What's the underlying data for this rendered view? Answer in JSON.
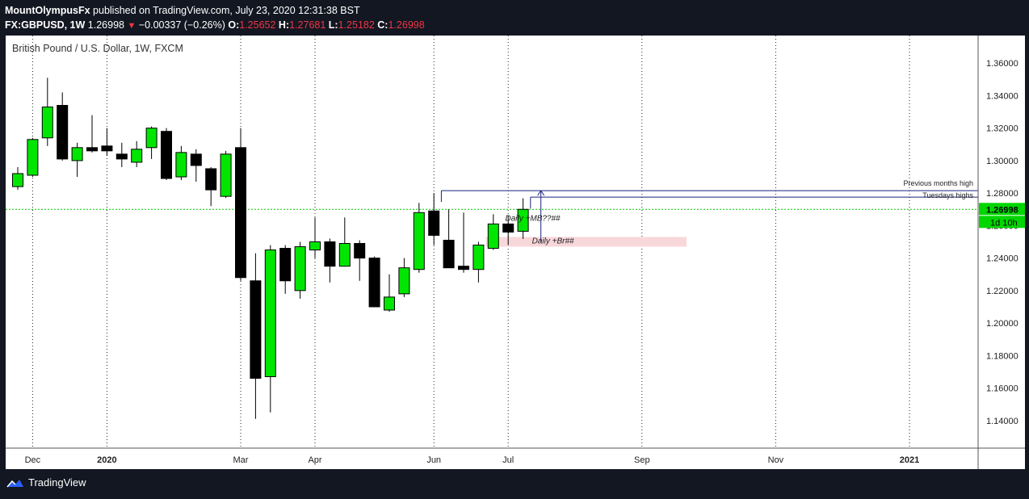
{
  "header": {
    "publisher": "MountOlympusFx",
    "published_text": "published on TradingView.com, July 23, 2020 12:31:38 BST",
    "symbol": "FX:GBPUSD, 1W",
    "last": "1.26998",
    "change": "−0.00337 (−0.26%)",
    "open_label": "O:",
    "open": "1.25652",
    "high_label": "H:",
    "high": "1.27681",
    "low_label": "L:",
    "low": "1.25182",
    "close_label": "C:",
    "close": "1.26998"
  },
  "footer": {
    "brand": "TradingView"
  },
  "colors": {
    "bull": "#00e600",
    "bear": "#000000",
    "price_line": "#00cc00",
    "level": "#1a237e",
    "zone": "#f8d7da"
  },
  "chart_data": {
    "type": "candlestick",
    "title": "British Pound / U.S. Dollar, 1W, FXCM",
    "ylim": [
      1.123,
      1.377
    ],
    "yticks": [
      "1.36000",
      "1.34000",
      "1.32000",
      "1.30000",
      "1.28000",
      "1.26000",
      "1.24000",
      "1.22000",
      "1.20000",
      "1.18000",
      "1.16000",
      "1.14000"
    ],
    "yticks_values": [
      1.36,
      1.34,
      1.32,
      1.3,
      1.28,
      1.26,
      1.24,
      1.22,
      1.2,
      1.18,
      1.16,
      1.14
    ],
    "xlabels": [
      "Dec",
      "2020",
      "Mar",
      "Apr",
      "Jun",
      "Jul",
      "Sep",
      "Nov",
      "2021"
    ],
    "xlabel_weeks": [
      1,
      6,
      15,
      20,
      28,
      33,
      42,
      51,
      60
    ],
    "grid": true,
    "candles": [
      {
        "o": 1.284,
        "h": 1.296,
        "l": 1.282,
        "c": 1.292
      },
      {
        "o": 1.291,
        "h": 1.314,
        "l": 1.29,
        "c": 1.313
      },
      {
        "o": 1.314,
        "h": 1.351,
        "l": 1.309,
        "c": 1.333
      },
      {
        "o": 1.334,
        "h": 1.342,
        "l": 1.3,
        "c": 1.301
      },
      {
        "o": 1.3,
        "h": 1.311,
        "l": 1.29,
        "c": 1.308
      },
      {
        "o": 1.308,
        "h": 1.328,
        "l": 1.305,
        "c": 1.306
      },
      {
        "o": 1.309,
        "h": 1.32,
        "l": 1.303,
        "c": 1.306
      },
      {
        "o": 1.304,
        "h": 1.311,
        "l": 1.296,
        "c": 1.301
      },
      {
        "o": 1.299,
        "h": 1.312,
        "l": 1.296,
        "c": 1.307
      },
      {
        "o": 1.308,
        "h": 1.321,
        "l": 1.301,
        "c": 1.32
      },
      {
        "o": 1.318,
        "h": 1.32,
        "l": 1.288,
        "c": 1.289
      },
      {
        "o": 1.29,
        "h": 1.309,
        "l": 1.288,
        "c": 1.305
      },
      {
        "o": 1.304,
        "h": 1.307,
        "l": 1.287,
        "c": 1.297
      },
      {
        "o": 1.295,
        "h": 1.296,
        "l": 1.272,
        "c": 1.282
      },
      {
        "o": 1.278,
        "h": 1.306,
        "l": 1.277,
        "c": 1.304
      },
      {
        "o": 1.308,
        "h": 1.32,
        "l": 1.226,
        "c": 1.228
      },
      {
        "o": 1.226,
        "h": 1.243,
        "l": 1.141,
        "c": 1.166
      },
      {
        "o": 1.167,
        "h": 1.248,
        "l": 1.145,
        "c": 1.245
      },
      {
        "o": 1.246,
        "h": 1.248,
        "l": 1.218,
        "c": 1.226
      },
      {
        "o": 1.22,
        "h": 1.25,
        "l": 1.215,
        "c": 1.247
      },
      {
        "o": 1.245,
        "h": 1.265,
        "l": 1.24,
        "c": 1.25
      },
      {
        "o": 1.25,
        "h": 1.252,
        "l": 1.225,
        "c": 1.235
      },
      {
        "o": 1.235,
        "h": 1.265,
        "l": 1.235,
        "c": 1.249
      },
      {
        "o": 1.249,
        "h": 1.251,
        "l": 1.226,
        "c": 1.24
      },
      {
        "o": 1.24,
        "h": 1.241,
        "l": 1.21,
        "c": 1.21
      },
      {
        "o": 1.208,
        "h": 1.23,
        "l": 1.207,
        "c": 1.216
      },
      {
        "o": 1.218,
        "h": 1.24,
        "l": 1.216,
        "c": 1.234
      },
      {
        "o": 1.233,
        "h": 1.274,
        "l": 1.231,
        "c": 1.268
      },
      {
        "o": 1.269,
        "h": 1.28,
        "l": 1.248,
        "c": 1.254
      },
      {
        "o": 1.251,
        "h": 1.27,
        "l": 1.234,
        "c": 1.234
      },
      {
        "o": 1.235,
        "h": 1.268,
        "l": 1.231,
        "c": 1.233
      },
      {
        "o": 1.233,
        "h": 1.25,
        "l": 1.225,
        "c": 1.248
      },
      {
        "o": 1.246,
        "h": 1.267,
        "l": 1.245,
        "c": 1.261
      },
      {
        "o": 1.261,
        "h": 1.266,
        "l": 1.248,
        "c": 1.256
      },
      {
        "o": 1.2565,
        "h": 1.2768,
        "l": 1.2518,
        "c": 1.27
      }
    ],
    "price_label": "1.26998",
    "countdown_label": "1d 10h",
    "levels": [
      {
        "name": "Previous months high",
        "y": 1.2815,
        "w_start": 28.5,
        "w_end": 68.5
      },
      {
        "name": "Tuesdays highs",
        "y": 1.2775,
        "w_start": 34.5,
        "w_end": 68.5
      }
    ],
    "zone": {
      "y_top": 1.253,
      "y_bottom": 1.247,
      "w_start": 31.5,
      "w_end": 45.0
    },
    "annotations": [
      {
        "text": "Daily +MB??##",
        "w": 32.8,
        "y": 1.263
      },
      {
        "text": "Daily +Br##",
        "w": 34.6,
        "y": 1.249
      }
    ]
  }
}
